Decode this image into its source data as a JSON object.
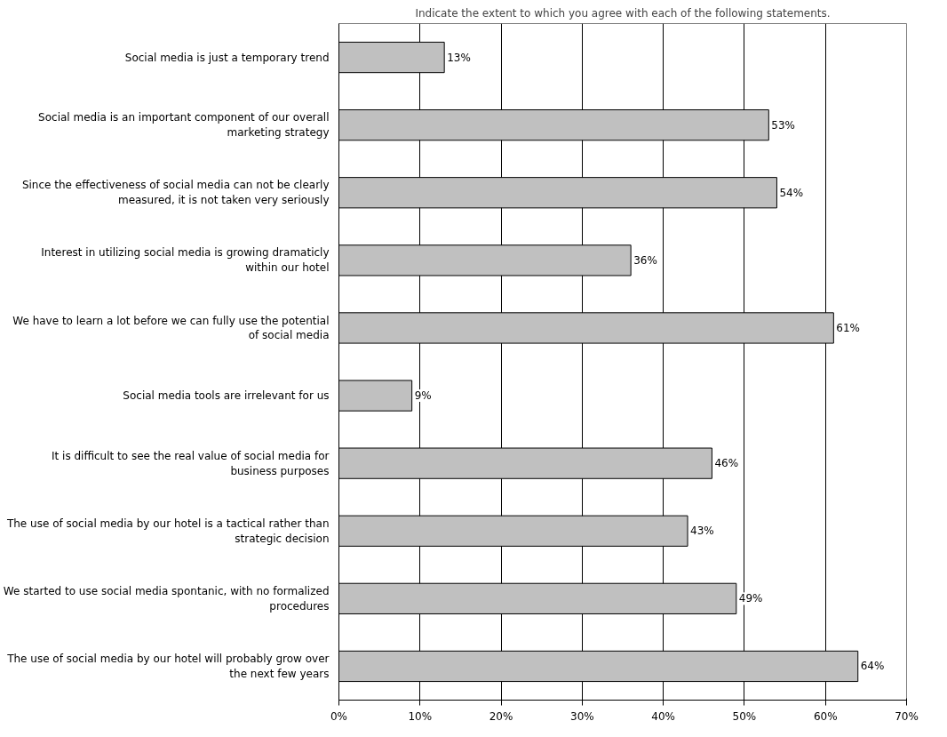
{
  "chart_data": {
    "type": "bar",
    "orientation": "horizontal",
    "title": "Indicate the extent to which you agree with each of the following statements.",
    "categories": [
      "Social media is just a temporary trend",
      "Social media is an important component of our overall marketing strategy",
      "Since the effectiveness of social media can not be clearly measured, it is not taken very seriously",
      "Interest in utilizing social media is growing dramaticly within our hotel",
      "We have to learn a lot before we can fully use the potential of social media",
      "Social media tools are irrelevant for us",
      "It is difficult to see the real value of social media for business purposes",
      "The use of social media by our hotel is a tactical rather than strategic decision",
      "We started to use social media spontanic, with no formalized procedures",
      "The use of social media by our hotel will probably grow over the next few years"
    ],
    "values": [
      13,
      53,
      54,
      36,
      61,
      9,
      46,
      43,
      49,
      64
    ],
    "value_labels": [
      "13%",
      "53%",
      "54%",
      "36%",
      "61%",
      "9%",
      "46%",
      "43%",
      "49%",
      "64%"
    ],
    "color": "#c0c0c0",
    "xlim": [
      0,
      70
    ],
    "xticks": [
      {
        "value": 0,
        "label": "0%"
      },
      {
        "value": 10,
        "label": "10%"
      },
      {
        "value": 20,
        "label": "20%"
      },
      {
        "value": 30,
        "label": "30%"
      },
      {
        "value": 40,
        "label": "40%"
      },
      {
        "value": 50,
        "label": "50%"
      },
      {
        "value": 60,
        "label": "60%"
      },
      {
        "value": 70,
        "label": "70%"
      }
    ],
    "grid": "x"
  }
}
